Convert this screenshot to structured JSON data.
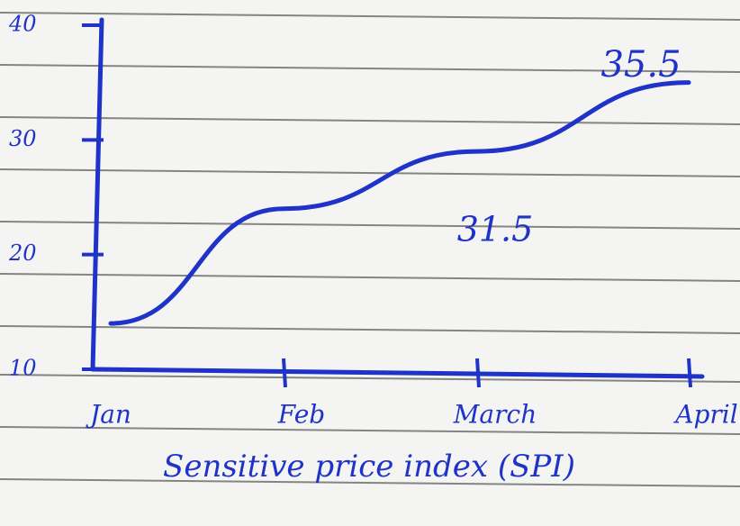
{
  "chart_data": {
    "type": "line",
    "title": "Sensitive price index (SPI)",
    "categories": [
      "Jan",
      "Feb",
      "March",
      "April"
    ],
    "series": [
      {
        "color": "#1f33c8",
        "values": [
          14,
          24,
          29,
          35
        ]
      }
    ],
    "ylim": [
      10,
      40
    ],
    "yticks": [
      10,
      20,
      30,
      40
    ],
    "annotations": [
      "35.5",
      "31.5"
    ]
  }
}
